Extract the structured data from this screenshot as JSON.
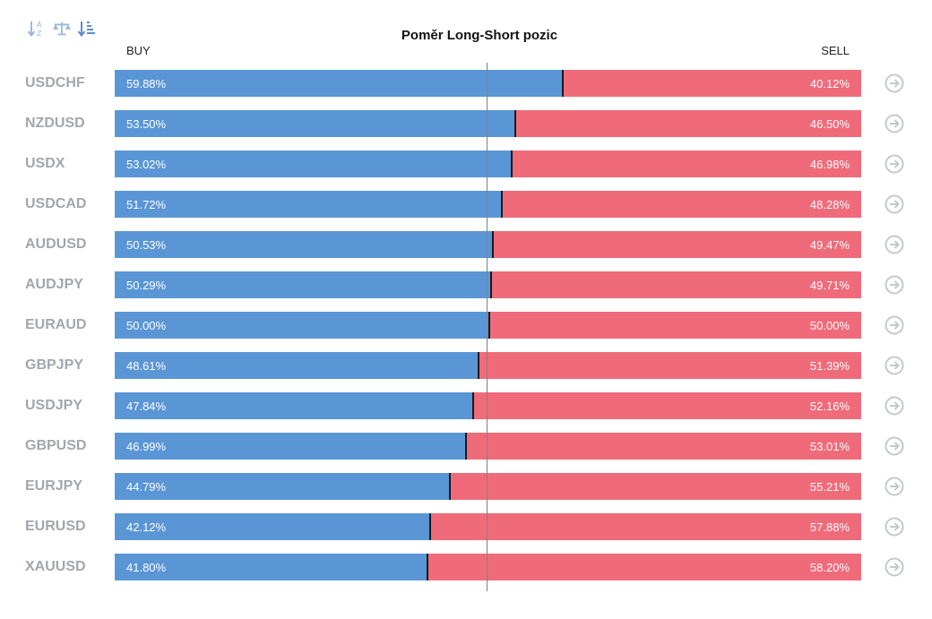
{
  "toolbar": {
    "icons": [
      "sort-alpha-icon",
      "balance-scale-icon",
      "sort-amount-icon"
    ],
    "icon_color": "#9ab8dd"
  },
  "header": {
    "title": "Poměr Long-Short pozic",
    "buy_label": "BUY",
    "sell_label": "SELL"
  },
  "colors": {
    "buy": "#5a96d6",
    "sell": "#f06b7a",
    "symbol": "#a4a6ad",
    "arrow_icon": "#c5c8ce"
  },
  "chart_data": {
    "type": "bar",
    "orientation": "horizontal-stacked-100",
    "title": "Poměr Long-Short pozic",
    "categories": [
      "USDCHF",
      "NZDUSD",
      "USDX",
      "USDCAD",
      "AUDUSD",
      "AUDJPY",
      "EURAUD",
      "GBPJPY",
      "USDJPY",
      "GBPUSD",
      "EURJPY",
      "EURUSD",
      "XAUUSD"
    ],
    "series": [
      {
        "name": "BUY",
        "values": [
          59.88,
          53.5,
          53.02,
          51.72,
          50.53,
          50.29,
          50.0,
          48.61,
          47.84,
          46.99,
          44.79,
          42.12,
          41.8
        ]
      },
      {
        "name": "SELL",
        "values": [
          40.12,
          46.5,
          46.98,
          48.28,
          49.47,
          49.71,
          50.0,
          51.39,
          52.16,
          53.01,
          55.21,
          57.88,
          58.2
        ]
      }
    ],
    "buy_text": [
      "59.88%",
      "53.50%",
      "53.02%",
      "51.72%",
      "50.53%",
      "50.29%",
      "50.00%",
      "48.61%",
      "47.84%",
      "46.99%",
      "44.79%",
      "42.12%",
      "41.80%"
    ],
    "sell_text": [
      "40.12%",
      "46.50%",
      "46.98%",
      "48.28%",
      "49.47%",
      "49.71%",
      "50.00%",
      "51.39%",
      "52.16%",
      "53.01%",
      "55.21%",
      "57.88%",
      "58.20%"
    ],
    "xlim": [
      0,
      100
    ],
    "reference_line": 50
  }
}
